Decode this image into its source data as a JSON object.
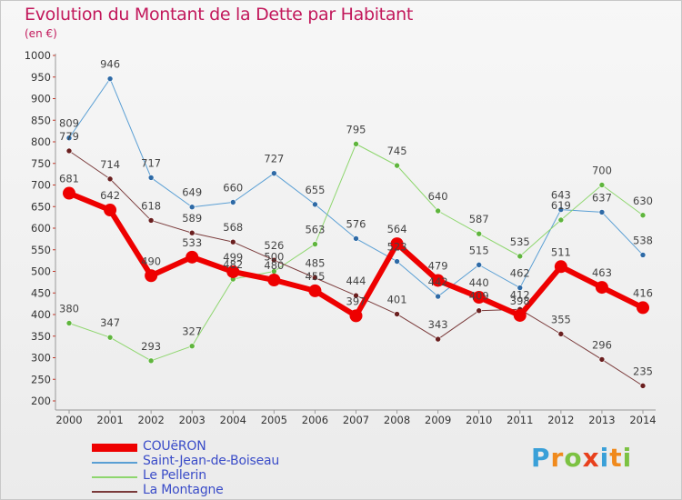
{
  "title": "Evolution du Montant de la Dette par Habitant",
  "subtitle": "(en €)",
  "brand": {
    "text": "Proxiti",
    "letters": [
      {
        "ch": "P",
        "color": "#3aa0d8"
      },
      {
        "ch": "r",
        "color": "#f08a1c"
      },
      {
        "ch": "o",
        "color": "#7cc242"
      },
      {
        "ch": "x",
        "color": "#e8401c"
      },
      {
        "ch": "i",
        "color": "#3aa0d8"
      },
      {
        "ch": "t",
        "color": "#f08a1c"
      },
      {
        "ch": "i",
        "color": "#7cc242"
      }
    ]
  },
  "chart_data": {
    "type": "line",
    "title": "Evolution du Montant de la Dette par Habitant",
    "ylabel": "(en €)",
    "x": [
      2000,
      2001,
      2002,
      2003,
      2004,
      2005,
      2006,
      2007,
      2008,
      2009,
      2010,
      2011,
      2012,
      2013,
      2014
    ],
    "ylim": [
      200,
      1000
    ],
    "yticks": [
      200,
      250,
      300,
      350,
      400,
      450,
      500,
      550,
      600,
      650,
      700,
      750,
      800,
      850,
      900,
      950,
      1000
    ],
    "grid": false,
    "legend_position": "bottom-left",
    "series": [
      {
        "name": "Saint-Jean-de-Boiseau",
        "color": "#5a9fd4",
        "dot": "#2e6aa6",
        "width": 1,
        "values": [
          809,
          946,
          717,
          649,
          660,
          727,
          655,
          576,
          523,
          442,
          515,
          462,
          643,
          637,
          538
        ],
        "labels": [
          "809",
          "946",
          "717",
          "649",
          "660",
          "727",
          "655",
          "576",
          "523",
          "442",
          "515",
          "462",
          "643",
          "637",
          "538"
        ]
      },
      {
        "name": "Le Pellerin",
        "color": "#8ed66e",
        "dot": "#5fb53d",
        "width": 1,
        "values": [
          380,
          347,
          293,
          327,
          482,
          500,
          563,
          795,
          745,
          640,
          587,
          535,
          619,
          700,
          630
        ],
        "labels": [
          "380",
          "347",
          "293",
          "327",
          "482",
          "500",
          "563",
          "795",
          "745",
          "640",
          "587",
          "535",
          "619",
          "700",
          "630"
        ]
      },
      {
        "name": "La Montagne",
        "color": "#7a3a3a",
        "dot": "#6a1f1f",
        "width": 1,
        "values": [
          779,
          714,
          618,
          589,
          568,
          526,
          485,
          444,
          401,
          343,
          409,
          412,
          355,
          296,
          235
        ],
        "labels": [
          "779",
          "714",
          "618",
          "589",
          "568",
          "526",
          "485",
          "444",
          "401",
          "343",
          "409",
          "412",
          "355",
          "296",
          "235"
        ]
      },
      {
        "name": "COUëRON",
        "color": "#ee0000",
        "dot": "#ee0000",
        "width": 6,
        "values": [
          681,
          642,
          490,
          533,
          499,
          480,
          455,
          397,
          564,
          479,
          440,
          398,
          511,
          463,
          416
        ],
        "labels": [
          "681",
          "642",
          "490",
          "533",
          "499",
          "480",
          "455",
          "397",
          "564",
          "479",
          "440",
          "398",
          "511",
          "463",
          "416"
        ]
      }
    ],
    "legend": [
      "COUëRON",
      "Saint-Jean-de-Boiseau",
      "Le Pellerin",
      "La Montagne"
    ]
  }
}
